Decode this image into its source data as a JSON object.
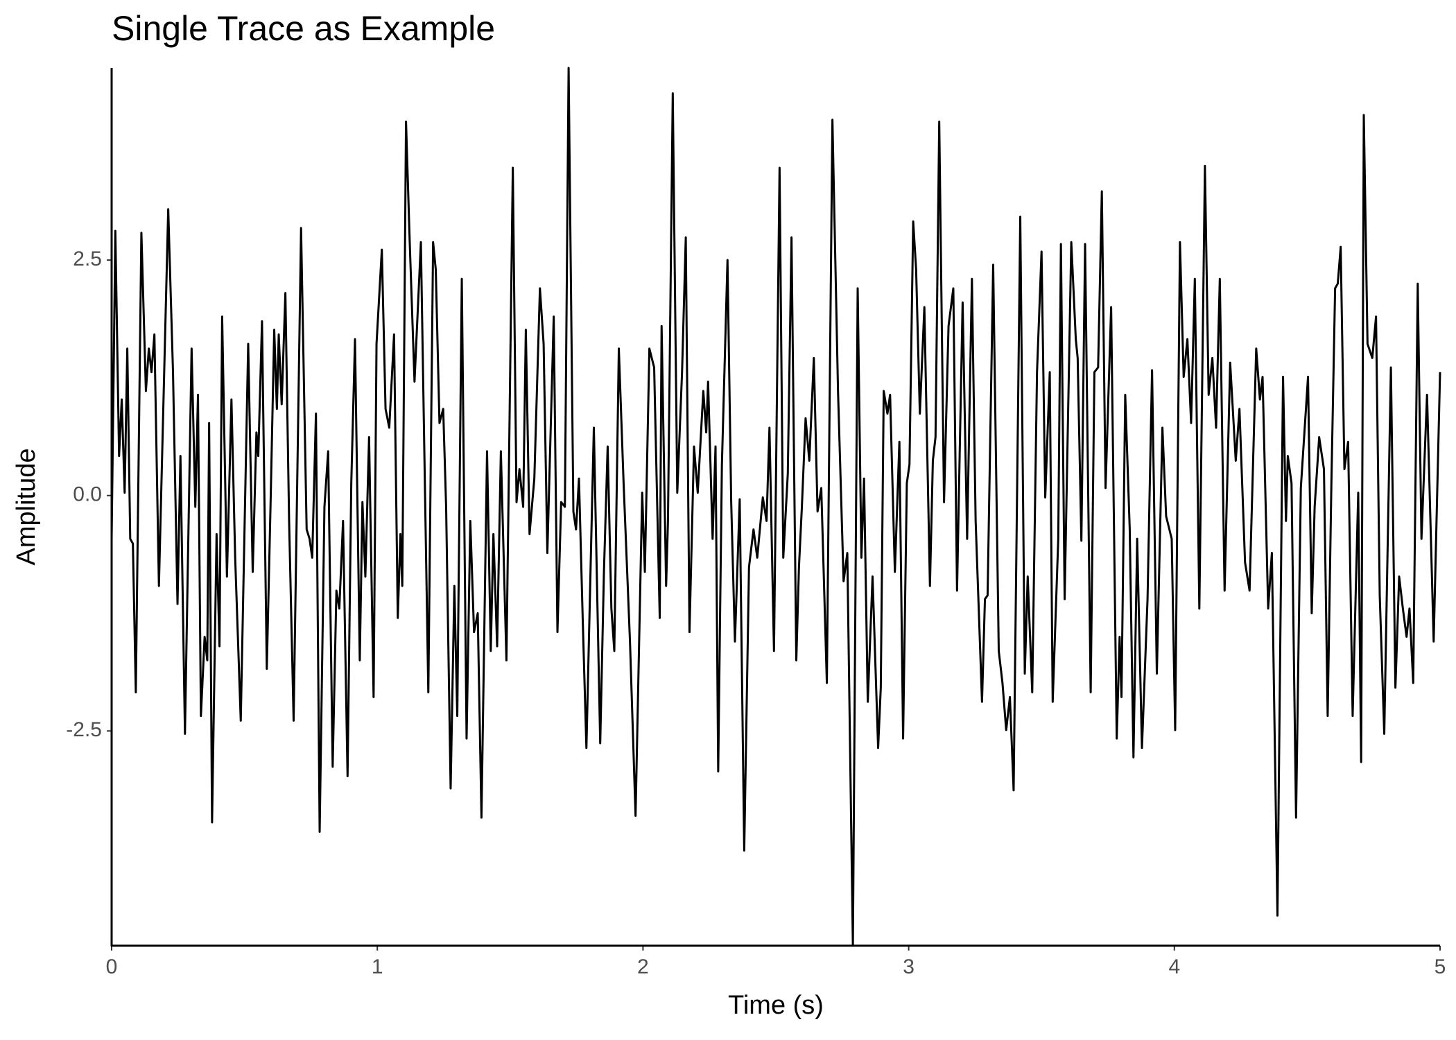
{
  "chart_data": {
    "type": "line",
    "title": "Single Trace as Example",
    "x_label": "Time (s)",
    "y_label": "Amplitude",
    "color": "#000000",
    "xlim": [
      0,
      5
    ],
    "ylim": [
      -4.78,
      4.54
    ],
    "xticks": [
      0,
      1,
      2,
      3,
      4,
      5
    ],
    "yticks": [
      -2.5,
      {
        "value": 0,
        "label": "0.0"
      },
      2.5
    ],
    "grid": false,
    "x": [
      0,
      0.014,
      0.028,
      0.038,
      0.049,
      0.059,
      0.07,
      0.08,
      0.091,
      0.112,
      0.129,
      0.14,
      0.15,
      0.161,
      0.178,
      0.213,
      0.231,
      0.248,
      0.259,
      0.276,
      0.301,
      0.315,
      0.325,
      0.336,
      0.35,
      0.36,
      0.367,
      0.378,
      0.395,
      0.406,
      0.416,
      0.434,
      0.451,
      0.465,
      0.486,
      0.514,
      0.531,
      0.545,
      0.552,
      0.566,
      0.584,
      0.598,
      0.612,
      0.622,
      0.629,
      0.64,
      0.654,
      0.668,
      0.685,
      0.713,
      0.734,
      0.745,
      0.755,
      0.769,
      0.783,
      0.801,
      0.815,
      0.832,
      0.846,
      0.857,
      0.871,
      0.888,
      0.902,
      0.916,
      0.934,
      0.944,
      0.955,
      0.969,
      0.986,
      0.997,
      1.017,
      1.031,
      1.045,
      1.063,
      1.077,
      1.087,
      1.094,
      1.108,
      1.122,
      1.14,
      1.164,
      1.192,
      1.21,
      1.22,
      1.234,
      1.248,
      1.259,
      1.276,
      1.29,
      1.301,
      1.318,
      1.336,
      1.35,
      1.364,
      1.378,
      1.392,
      1.413,
      1.427,
      1.437,
      1.451,
      1.465,
      1.486,
      1.51,
      1.524,
      1.535,
      1.549,
      1.559,
      1.573,
      1.591,
      1.612,
      1.626,
      1.64,
      1.664,
      1.678,
      1.692,
      1.706,
      1.72,
      1.738,
      1.748,
      1.759,
      1.773,
      1.787,
      1.815,
      1.839,
      1.853,
      1.867,
      1.881,
      1.892,
      1.909,
      1.927,
      1.951,
      1.972,
      1.997,
      2.007,
      2.024,
      2.042,
      2.063,
      2.07,
      2.087,
      2.094,
      2.112,
      2.129,
      2.147,
      2.161,
      2.175,
      2.192,
      2.206,
      2.227,
      2.238,
      2.245,
      2.262,
      2.273,
      2.283,
      2.297,
      2.318,
      2.332,
      2.346,
      2.364,
      2.381,
      2.399,
      2.416,
      2.43,
      2.451,
      2.465,
      2.476,
      2.493,
      2.514,
      2.528,
      2.545,
      2.559,
      2.577,
      2.587,
      2.598,
      2.612,
      2.626,
      2.643,
      2.657,
      2.671,
      2.692,
      2.713,
      2.734,
      2.755,
      2.769,
      2.79,
      2.808,
      2.822,
      2.832,
      2.846,
      2.864,
      2.885,
      2.895,
      2.906,
      2.92,
      2.93,
      2.948,
      2.965,
      2.979,
      2.993,
      3.003,
      3.017,
      3.028,
      3.042,
      3.059,
      3.08,
      3.091,
      3.101,
      3.115,
      3.133,
      3.15,
      3.168,
      3.182,
      3.203,
      3.22,
      3.238,
      3.252,
      3.276,
      3.287,
      3.297,
      3.318,
      3.339,
      3.353,
      3.367,
      3.381,
      3.395,
      3.42,
      3.437,
      3.448,
      3.465,
      3.483,
      3.5,
      3.514,
      3.531,
      3.542,
      3.563,
      3.573,
      3.587,
      3.612,
      3.629,
      3.636,
      3.65,
      3.664,
      3.685,
      3.699,
      3.713,
      3.727,
      3.741,
      3.762,
      3.783,
      3.794,
      3.801,
      3.815,
      3.832,
      3.846,
      3.86,
      3.878,
      3.899,
      3.916,
      3.934,
      3.955,
      3.969,
      3.99,
      4.003,
      4.021,
      4.035,
      4.049,
      4.063,
      4.077,
      4.094,
      4.115,
      4.129,
      4.143,
      4.157,
      4.171,
      4.189,
      4.21,
      4.231,
      4.245,
      4.266,
      4.283,
      4.308,
      4.322,
      4.332,
      4.353,
      4.367,
      4.388,
      4.409,
      4.42,
      4.427,
      4.441,
      4.458,
      4.476,
      4.503,
      4.517,
      4.528,
      4.545,
      4.563,
      4.577,
      4.591,
      4.605,
      4.615,
      4.626,
      4.64,
      4.654,
      4.671,
      4.692,
      4.703,
      4.713,
      4.727,
      4.745,
      4.759,
      4.773,
      4.79,
      4.815,
      4.832,
      4.846,
      4.86,
      4.874,
      4.885,
      4.899,
      4.916,
      4.93,
      4.951,
      4.976,
      5.0
    ],
    "values": [
      -0.46,
      2.81,
      0.42,
      1.02,
      0.03,
      1.56,
      -0.46,
      -0.51,
      -2.09,
      2.79,
      1.11,
      1.56,
      1.31,
      1.71,
      -0.96,
      3.04,
      1.31,
      -1.15,
      0.42,
      -2.53,
      1.56,
      -0.12,
      1.07,
      -2.34,
      -1.5,
      -1.75,
      0.77,
      -3.47,
      -0.41,
      -1.6,
      1.9,
      -0.86,
      1.02,
      -0.66,
      -2.39,
      1.61,
      -0.81,
      0.67,
      0.42,
      1.85,
      -1.84,
      -0.12,
      1.76,
      0.92,
      1.71,
      0.97,
      2.15,
      -0.27,
      -2.39,
      2.84,
      -0.36,
      -0.46,
      -0.66,
      0.87,
      -3.57,
      -0.12,
      0.47,
      -2.88,
      -1.01,
      -1.2,
      -0.27,
      -2.98,
      0.13,
      1.66,
      -1.75,
      -0.07,
      -0.86,
      0.62,
      -2.14,
      1.61,
      2.61,
      0.92,
      0.72,
      1.71,
      -1.3,
      -0.41,
      -0.96,
      3.97,
      2.69,
      1.21,
      2.69,
      -2.09,
      2.69,
      2.4,
      0.77,
      0.92,
      -0.12,
      -3.11,
      -0.96,
      -2.34,
      2.3,
      -2.58,
      -0.27,
      -1.45,
      -1.25,
      -3.42,
      0.47,
      -1.65,
      -0.41,
      -1.6,
      0.47,
      -1.75,
      3.48,
      -0.07,
      0.28,
      -0.12,
      1.76,
      -0.41,
      0.18,
      2.2,
      1.61,
      -0.61,
      1.9,
      -1.45,
      -0.07,
      -0.12,
      4.54,
      -0.17,
      -0.36,
      0.18,
      -1.3,
      -2.68,
      0.72,
      -2.63,
      -0.81,
      0.52,
      -1.2,
      -1.65,
      1.56,
      0.13,
      -1.55,
      -3.4,
      0.03,
      -0.81,
      1.56,
      1.36,
      -1.3,
      1.8,
      -0.96,
      -0.27,
      4.27,
      0.03,
      1.31,
      2.74,
      -1.45,
      0.52,
      0.03,
      1.11,
      0.67,
      1.21,
      -0.46,
      0.52,
      -2.93,
      0.33,
      2.5,
      -0.07,
      -1.55,
      -0.04,
      -3.77,
      -0.76,
      -0.36,
      -0.66,
      -0.02,
      -0.27,
      0.72,
      -1.65,
      3.48,
      -0.66,
      0.23,
      2.74,
      -1.75,
      -0.76,
      -0.12,
      0.82,
      0.37,
      1.46,
      -0.17,
      0.08,
      -1.99,
      3.99,
      1.11,
      -0.91,
      -0.61,
      -4.78,
      2.2,
      -0.66,
      0.18,
      -2.19,
      -0.86,
      -2.68,
      -2.04,
      1.11,
      0.87,
      1.07,
      -0.81,
      0.57,
      -2.58,
      0.13,
      0.33,
      2.91,
      2.4,
      0.87,
      2.0,
      -0.96,
      0.37,
      0.62,
      3.97,
      -0.07,
      1.8,
      2.2,
      -1.01,
      2.05,
      -0.46,
      2.3,
      -0.27,
      -2.19,
      -1.1,
      -1.06,
      2.45,
      -1.65,
      -1.99,
      -2.49,
      -2.14,
      -3.13,
      2.96,
      -1.89,
      -0.86,
      -2.09,
      1.31,
      2.59,
      -0.02,
      1.31,
      -2.19,
      -0.46,
      2.67,
      -1.1,
      2.69,
      1.66,
      1.46,
      -0.48,
      2.67,
      -2.09,
      1.31,
      1.36,
      3.23,
      0.08,
      2.0,
      -2.58,
      -1.5,
      -2.14,
      1.07,
      -0.36,
      -2.78,
      -0.46,
      -2.68,
      -1.1,
      1.33,
      -1.89,
      0.72,
      -0.22,
      -0.46,
      -2.49,
      2.69,
      1.26,
      1.66,
      0.77,
      2.3,
      -1.2,
      3.5,
      1.07,
      1.46,
      0.72,
      2.3,
      -1.01,
      1.41,
      0.37,
      0.92,
      -0.71,
      -1.01,
      1.56,
      1.02,
      1.26,
      -1.2,
      -0.61,
      -4.46,
      1.26,
      -0.27,
      0.42,
      0.13,
      -3.42,
      0.08,
      1.26,
      -1.25,
      -0.12,
      0.62,
      0.28,
      -2.34,
      0.13,
      2.2,
      2.25,
      2.64,
      0.28,
      0.57,
      -2.34,
      0.03,
      -2.83,
      4.04,
      1.61,
      1.46,
      1.9,
      -1.06,
      -2.53,
      1.36,
      -2.04,
      -0.86,
      -1.2,
      -1.5,
      -1.2,
      -1.99,
      2.25,
      -0.46,
      1.07,
      -1.55,
      1.31
    ]
  }
}
